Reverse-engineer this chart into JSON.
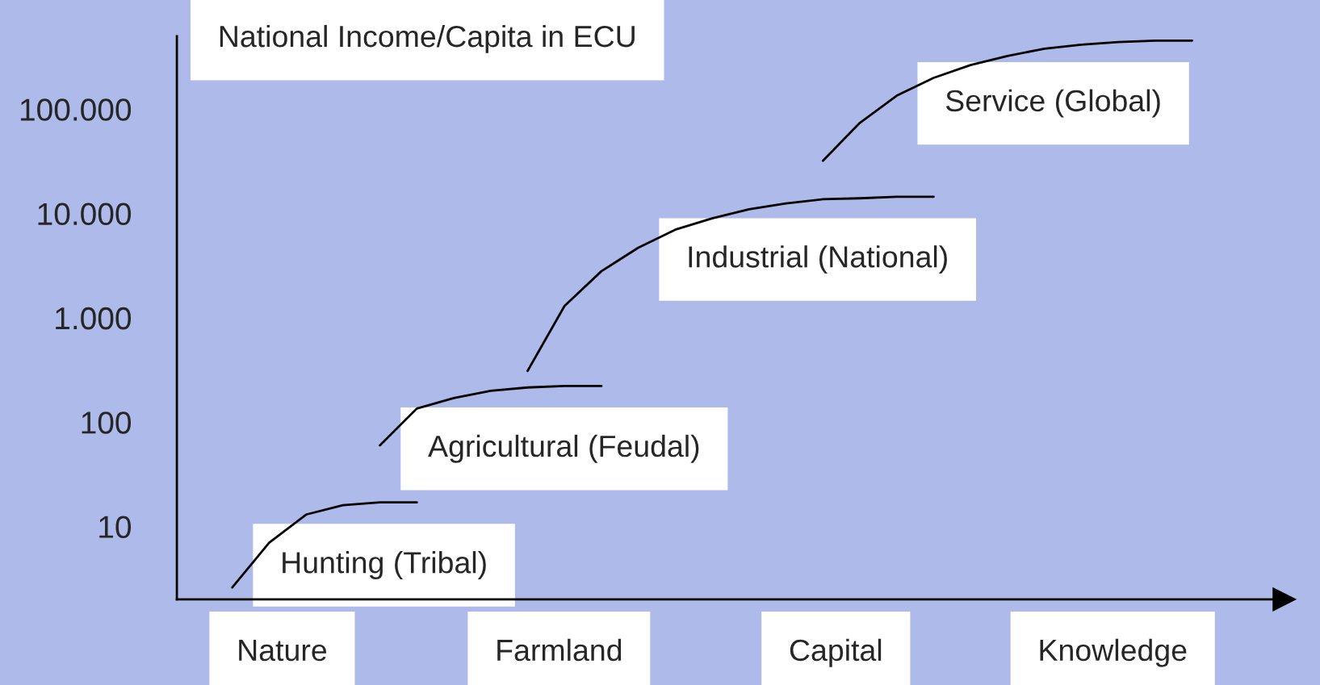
{
  "chart_data": {
    "type": "line",
    "title": "National Income/Capita in ECU",
    "categories": [
      null,
      null,
      null,
      null,
      null,
      null,
      null,
      null,
      null,
      null,
      null,
      null,
      null,
      null,
      null,
      null,
      null,
      null,
      null,
      null,
      null,
      null,
      null,
      null,
      null,
      null,
      null,
      null,
      null,
      null
    ],
    "series": [
      {
        "name": "Hunting (Tribal)",
        "color": "#000000",
        "values": [
          null,
          2.6,
          7,
          13,
          16,
          17,
          17,
          null,
          null,
          null,
          null,
          null,
          null,
          null,
          null,
          null,
          null,
          null,
          null,
          null,
          null,
          null,
          null,
          null,
          null,
          null,
          null,
          null,
          null,
          null
        ]
      },
      {
        "name": "Agricultural (Feudal)",
        "color": "#000000",
        "values": [
          null,
          null,
          null,
          null,
          null,
          60,
          135,
          170,
          200,
          215,
          222,
          222,
          null,
          null,
          null,
          null,
          null,
          null,
          null,
          null,
          null,
          null,
          null,
          null,
          null,
          null,
          null,
          null,
          null,
          null
        ]
      },
      {
        "name": "Industrial (National)",
        "color": "#000000",
        "values": [
          null,
          null,
          null,
          null,
          null,
          null,
          null,
          null,
          null,
          310,
          1300,
          2800,
          4700,
          7000,
          9000,
          11000,
          12500,
          13700,
          14000,
          14500,
          14500,
          null,
          null,
          null,
          null,
          null,
          null,
          null,
          null,
          null
        ]
      },
      {
        "name": "Service (Global)",
        "color": "#000000",
        "values": [
          null,
          null,
          null,
          null,
          null,
          null,
          null,
          null,
          null,
          null,
          null,
          null,
          null,
          null,
          null,
          null,
          null,
          32000,
          74000,
          135000,
          200000,
          265000,
          324000,
          380000,
          415000,
          440000,
          455000,
          455000,
          null,
          null
        ]
      }
    ],
    "log": "y",
    "ylim": [
      2,
      500000
    ],
    "yticks": [
      10,
      100,
      {
        "value": 1000,
        "label": "1.000"
      },
      {
        "value": 10000,
        "label": "10.000"
      },
      {
        "value": 100000,
        "label": "100.000"
      }
    ],
    "grid": false,
    "legend": false,
    "annotations": [
      "Nature",
      "Farmland",
      "Capital",
      "Knowledge"
    ]
  }
}
